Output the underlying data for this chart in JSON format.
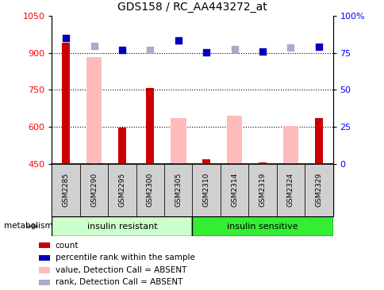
{
  "title": "GDS158 / RC_AA443272_at",
  "samples": [
    "GSM2285",
    "GSM2290",
    "GSM2295",
    "GSM2300",
    "GSM2305",
    "GSM2310",
    "GSM2314",
    "GSM2319",
    "GSM2324",
    "GSM2329"
  ],
  "red_bars": [
    940,
    452,
    597,
    757,
    452,
    468,
    452,
    456,
    452,
    635
  ],
  "pink_bars": [
    null,
    882,
    null,
    null,
    635,
    null,
    647,
    null,
    605,
    null
  ],
  "blue_dots_y": [
    960,
    null,
    912,
    null,
    950,
    903,
    null,
    907,
    null,
    924
  ],
  "light_blue_dots_y": [
    null,
    927,
    null,
    912,
    null,
    null,
    914,
    null,
    922,
    null
  ],
  "ylim_left": [
    450,
    1050
  ],
  "ylim_right": [
    0,
    100
  ],
  "yticks_left": [
    450,
    600,
    750,
    900,
    1050
  ],
  "ytick_right_vals": [
    0,
    25,
    50,
    75,
    100
  ],
  "ytick_right_labels": [
    "0",
    "25",
    "50",
    "75",
    "100%"
  ],
  "grid_vals": [
    600,
    750,
    900
  ],
  "n_insulin_resistant": 5,
  "n_insulin_sensitive": 5,
  "group1_label": "insulin resistant",
  "group2_label": "insulin sensitive",
  "group1_color": "#ccffcc",
  "group2_color": "#33ee33",
  "red_color": "#cc0000",
  "pink_color": "#ffbbbb",
  "blue_color": "#0000bb",
  "light_blue_color": "#aaaacc",
  "label_bg_color": "#d0d0d0",
  "metabolism_label": "metabolism",
  "legend_items": [
    {
      "label": "count",
      "color": "#cc0000"
    },
    {
      "label": "percentile rank within the sample",
      "color": "#0000bb"
    },
    {
      "label": "value, Detection Call = ABSENT",
      "color": "#ffbbbb"
    },
    {
      "label": "rank, Detection Call = ABSENT",
      "color": "#aaaacc"
    }
  ]
}
